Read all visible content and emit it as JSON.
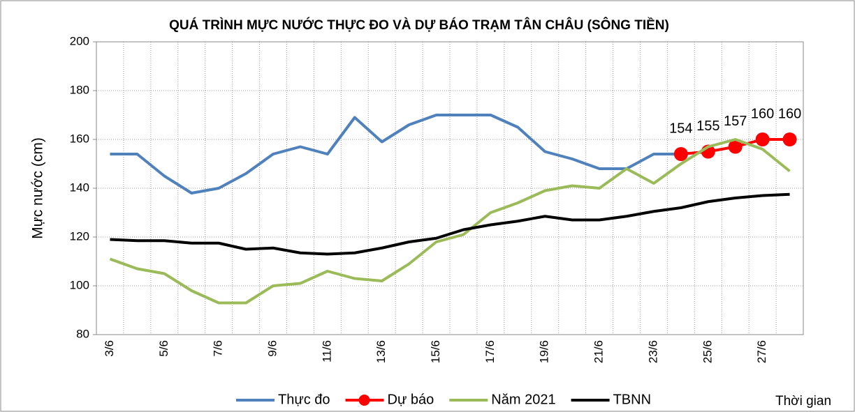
{
  "chart_data": {
    "type": "line",
    "title": "QUÁ TRÌNH MỰC NƯỚC THỰC ĐO VÀ DỰ BÁO TRẠM TÂN CHÂU (SÔNG TIỀN)",
    "y_label": "Mực nước (cm)",
    "x_label": "Thời gian",
    "categories": [
      "3/6",
      null,
      "5/6",
      null,
      "7/6",
      null,
      "9/6",
      null,
      "11/6",
      null,
      "13/6",
      null,
      "15/6",
      null,
      "17/6",
      null,
      "19/6",
      null,
      "21/6",
      null,
      "23/6",
      null,
      "25/6",
      null,
      "27/6",
      null
    ],
    "ylim": [
      80,
      200
    ],
    "yticks": [
      80,
      100,
      120,
      140,
      160,
      180,
      200
    ],
    "grid": true,
    "legend": "bottom",
    "series": [
      {
        "name": "Thực đo",
        "color": "#4f81bd",
        "values": [
          154,
          154,
          145,
          138,
          140,
          146,
          154,
          157,
          154,
          169,
          159,
          166,
          170,
          170,
          170,
          165,
          155,
          152,
          148,
          148,
          154,
          154,
          null,
          null,
          null,
          null
        ]
      },
      {
        "name": "Dự báo",
        "color": "#ff0000",
        "markers": true,
        "data_labels": true,
        "values": [
          null,
          null,
          null,
          null,
          null,
          null,
          null,
          null,
          null,
          null,
          null,
          null,
          null,
          null,
          null,
          null,
          null,
          null,
          null,
          null,
          null,
          154,
          155,
          157,
          160,
          160
        ]
      },
      {
        "name": "Năm 2021",
        "color": "#9bbb59",
        "values": [
          111,
          107,
          105,
          98,
          93,
          93,
          100,
          101,
          106,
          103,
          102,
          109,
          118,
          121,
          130,
          134,
          139,
          141,
          140,
          148,
          142,
          150,
          157,
          160,
          156,
          147
        ]
      },
      {
        "name": "TBNN",
        "color": "#000000",
        "values": [
          119,
          118.5,
          118.5,
          117.5,
          117.5,
          115,
          115.5,
          113.5,
          113,
          113.5,
          115.5,
          118,
          119.5,
          123,
          125,
          126.5,
          128.5,
          127,
          127,
          128.5,
          130.5,
          132,
          134.5,
          136,
          137,
          137.5
        ]
      }
    ]
  }
}
